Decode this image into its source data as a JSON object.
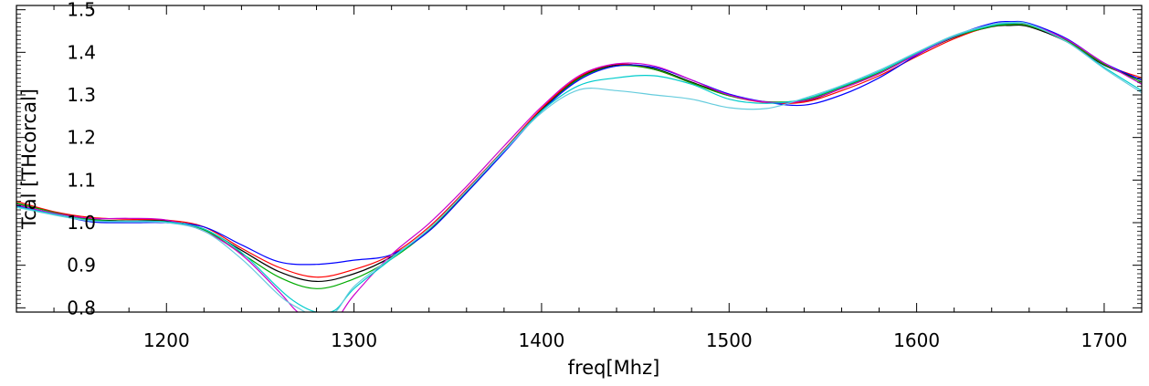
{
  "chart_data": {
    "type": "line",
    "title": "",
    "xlabel": "freq[Mhz]",
    "ylabel": "Tcal  [THcorcal]",
    "xlim": [
      1120,
      1720
    ],
    "ylim": [
      0.79,
      1.51
    ],
    "x_ticks": [
      1200,
      1300,
      1400,
      1500,
      1600,
      1700
    ],
    "y_ticks": [
      0.8,
      0.9,
      1.0,
      1.1,
      1.2,
      1.3,
      1.4,
      1.5
    ],
    "x_tick_labels": [
      "1200",
      "1300",
      "1400",
      "1500",
      "1600",
      "1700"
    ],
    "y_tick_labels": [
      "0.8",
      "0.9",
      "1.0",
      "1.1",
      "1.2",
      "1.3",
      "1.4",
      "1.5"
    ],
    "grid": false,
    "legend": "none",
    "series": [
      {
        "color": "#000000",
        "points": [
          [
            1120,
            1.045
          ],
          [
            1140,
            1.025
          ],
          [
            1160,
            1.008
          ],
          [
            1180,
            1.004
          ],
          [
            1200,
            1.004
          ],
          [
            1220,
            0.985
          ],
          [
            1240,
            0.935
          ],
          [
            1260,
            0.885
          ],
          [
            1280,
            0.862
          ],
          [
            1300,
            0.88
          ],
          [
            1320,
            0.92
          ],
          [
            1340,
            0.985
          ],
          [
            1360,
            1.075
          ],
          [
            1380,
            1.17
          ],
          [
            1400,
            1.265
          ],
          [
            1420,
            1.34
          ],
          [
            1440,
            1.37
          ],
          [
            1460,
            1.362
          ],
          [
            1480,
            1.33
          ],
          [
            1500,
            1.3
          ],
          [
            1520,
            1.283
          ],
          [
            1540,
            1.285
          ],
          [
            1560,
            1.315
          ],
          [
            1580,
            1.35
          ],
          [
            1600,
            1.395
          ],
          [
            1620,
            1.435
          ],
          [
            1640,
            1.46
          ],
          [
            1650,
            1.463
          ],
          [
            1660,
            1.46
          ],
          [
            1680,
            1.425
          ],
          [
            1700,
            1.37
          ],
          [
            1720,
            1.335
          ]
        ]
      },
      {
        "color": "#ff0000",
        "points": [
          [
            1120,
            1.05
          ],
          [
            1140,
            1.026
          ],
          [
            1160,
            1.012
          ],
          [
            1180,
            1.008
          ],
          [
            1200,
            1.006
          ],
          [
            1220,
            0.99
          ],
          [
            1240,
            0.94
          ],
          [
            1260,
            0.895
          ],
          [
            1280,
            0.872
          ],
          [
            1300,
            0.89
          ],
          [
            1320,
            0.925
          ],
          [
            1340,
            0.99
          ],
          [
            1360,
            1.078
          ],
          [
            1380,
            1.172
          ],
          [
            1400,
            1.268
          ],
          [
            1420,
            1.342
          ],
          [
            1440,
            1.372
          ],
          [
            1460,
            1.36
          ],
          [
            1480,
            1.328
          ],
          [
            1500,
            1.298
          ],
          [
            1520,
            1.282
          ],
          [
            1540,
            1.283
          ],
          [
            1560,
            1.31
          ],
          [
            1580,
            1.345
          ],
          [
            1600,
            1.39
          ],
          [
            1620,
            1.432
          ],
          [
            1640,
            1.462
          ],
          [
            1650,
            1.466
          ],
          [
            1660,
            1.462
          ],
          [
            1680,
            1.428
          ],
          [
            1700,
            1.372
          ],
          [
            1720,
            1.34
          ]
        ]
      },
      {
        "color": "#00aa00",
        "points": [
          [
            1120,
            1.046
          ],
          [
            1140,
            1.024
          ],
          [
            1160,
            1.007
          ],
          [
            1180,
            1.003
          ],
          [
            1200,
            1.002
          ],
          [
            1220,
            0.983
          ],
          [
            1240,
            0.928
          ],
          [
            1260,
            0.872
          ],
          [
            1280,
            0.845
          ],
          [
            1300,
            0.868
          ],
          [
            1320,
            0.915
          ],
          [
            1340,
            0.982
          ],
          [
            1360,
            1.072
          ],
          [
            1380,
            1.168
          ],
          [
            1400,
            1.263
          ],
          [
            1420,
            1.338
          ],
          [
            1440,
            1.368
          ],
          [
            1460,
            1.36
          ],
          [
            1480,
            1.328
          ],
          [
            1500,
            1.298
          ],
          [
            1520,
            1.284
          ],
          [
            1540,
            1.288
          ],
          [
            1560,
            1.318
          ],
          [
            1580,
            1.352
          ],
          [
            1600,
            1.396
          ],
          [
            1620,
            1.436
          ],
          [
            1640,
            1.461
          ],
          [
            1650,
            1.465
          ],
          [
            1660,
            1.462
          ],
          [
            1680,
            1.428
          ],
          [
            1700,
            1.372
          ],
          [
            1720,
            1.33
          ]
        ]
      },
      {
        "color": "#0000ff",
        "points": [
          [
            1120,
            1.04
          ],
          [
            1140,
            1.02
          ],
          [
            1160,
            1.002
          ],
          [
            1180,
            1.0
          ],
          [
            1200,
            1.0
          ],
          [
            1220,
            0.99
          ],
          [
            1240,
            0.948
          ],
          [
            1260,
            0.908
          ],
          [
            1280,
            0.902
          ],
          [
            1300,
            0.912
          ],
          [
            1320,
            0.925
          ],
          [
            1340,
            0.98
          ],
          [
            1360,
            1.07
          ],
          [
            1380,
            1.165
          ],
          [
            1400,
            1.262
          ],
          [
            1420,
            1.335
          ],
          [
            1440,
            1.368
          ],
          [
            1460,
            1.365
          ],
          [
            1480,
            1.335
          ],
          [
            1500,
            1.302
          ],
          [
            1520,
            1.283
          ],
          [
            1540,
            1.276
          ],
          [
            1560,
            1.3
          ],
          [
            1580,
            1.34
          ],
          [
            1600,
            1.393
          ],
          [
            1620,
            1.438
          ],
          [
            1640,
            1.468
          ],
          [
            1650,
            1.472
          ],
          [
            1660,
            1.468
          ],
          [
            1680,
            1.432
          ],
          [
            1700,
            1.375
          ],
          [
            1720,
            1.335
          ]
        ]
      },
      {
        "color": "#cc00cc",
        "points": [
          [
            1120,
            1.042
          ],
          [
            1140,
            1.022
          ],
          [
            1160,
            1.01
          ],
          [
            1180,
            1.01
          ],
          [
            1200,
            1.006
          ],
          [
            1220,
            0.98
          ],
          [
            1240,
            0.925
          ],
          [
            1260,
            0.838
          ],
          [
            1270,
            0.79
          ],
          [
            1280,
            0.77
          ],
          [
            1290,
            0.772
          ],
          [
            1300,
            0.83
          ],
          [
            1320,
            0.925
          ],
          [
            1340,
            0.998
          ],
          [
            1360,
            1.085
          ],
          [
            1380,
            1.18
          ],
          [
            1400,
            1.272
          ],
          [
            1420,
            1.345
          ],
          [
            1440,
            1.373
          ],
          [
            1460,
            1.368
          ],
          [
            1480,
            1.335
          ],
          [
            1500,
            1.3
          ],
          [
            1520,
            1.283
          ],
          [
            1540,
            1.286
          ],
          [
            1560,
            1.315
          ],
          [
            1580,
            1.35
          ],
          [
            1600,
            1.395
          ],
          [
            1620,
            1.437
          ],
          [
            1640,
            1.465
          ],
          [
            1650,
            1.469
          ],
          [
            1660,
            1.465
          ],
          [
            1680,
            1.43
          ],
          [
            1700,
            1.375
          ],
          [
            1720,
            1.325
          ]
        ]
      },
      {
        "color": "#00cccc",
        "points": [
          [
            1120,
            1.038
          ],
          [
            1140,
            1.02
          ],
          [
            1160,
            1.005
          ],
          [
            1180,
            1.003
          ],
          [
            1200,
            1.002
          ],
          [
            1220,
            0.985
          ],
          [
            1240,
            0.93
          ],
          [
            1260,
            0.845
          ],
          [
            1270,
            0.81
          ],
          [
            1280,
            0.79
          ],
          [
            1290,
            0.795
          ],
          [
            1300,
            0.845
          ],
          [
            1320,
            0.915
          ],
          [
            1340,
            0.985
          ],
          [
            1360,
            1.075
          ],
          [
            1380,
            1.17
          ],
          [
            1400,
            1.262
          ],
          [
            1420,
            1.322
          ],
          [
            1440,
            1.34
          ],
          [
            1460,
            1.345
          ],
          [
            1480,
            1.325
          ],
          [
            1500,
            1.29
          ],
          [
            1520,
            1.28
          ],
          [
            1540,
            1.29
          ],
          [
            1560,
            1.32
          ],
          [
            1580,
            1.355
          ],
          [
            1600,
            1.398
          ],
          [
            1620,
            1.438
          ],
          [
            1640,
            1.463
          ],
          [
            1650,
            1.468
          ],
          [
            1660,
            1.465
          ],
          [
            1680,
            1.425
          ],
          [
            1700,
            1.365
          ],
          [
            1720,
            1.31
          ]
        ]
      },
      {
        "color": "#66ccdd",
        "points": [
          [
            1120,
            1.036
          ],
          [
            1140,
            1.018
          ],
          [
            1160,
            1.004
          ],
          [
            1180,
            1.002
          ],
          [
            1200,
            1.0
          ],
          [
            1220,
            0.98
          ],
          [
            1240,
            0.915
          ],
          [
            1260,
            0.83
          ],
          [
            1270,
            0.8
          ],
          [
            1280,
            0.78
          ],
          [
            1290,
            0.79
          ],
          [
            1300,
            0.85
          ],
          [
            1320,
            0.918
          ],
          [
            1340,
            0.985
          ],
          [
            1360,
            1.075
          ],
          [
            1380,
            1.168
          ],
          [
            1400,
            1.258
          ],
          [
            1420,
            1.312
          ],
          [
            1440,
            1.31
          ],
          [
            1460,
            1.3
          ],
          [
            1480,
            1.29
          ],
          [
            1500,
            1.27
          ],
          [
            1520,
            1.268
          ],
          [
            1540,
            1.292
          ],
          [
            1560,
            1.322
          ],
          [
            1580,
            1.358
          ],
          [
            1600,
            1.4
          ],
          [
            1620,
            1.44
          ],
          [
            1640,
            1.465
          ],
          [
            1650,
            1.47
          ],
          [
            1660,
            1.466
          ],
          [
            1680,
            1.425
          ],
          [
            1700,
            1.362
          ],
          [
            1720,
            1.305
          ]
        ]
      }
    ]
  }
}
